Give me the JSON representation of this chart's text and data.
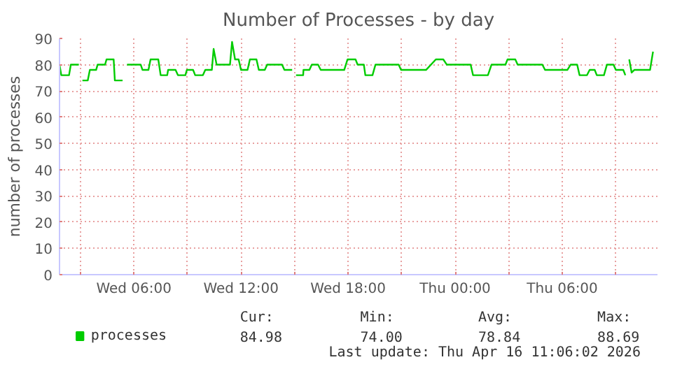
{
  "chart_data": {
    "type": "line",
    "title": "Number of Processes - by day",
    "ylabel": "number of processes",
    "x": [
      "2026-04-15T01:50",
      "2026-04-15T01:56",
      "2026-04-15T02:22",
      "2026-04-15T02:28",
      "2026-04-15T02:55",
      null,
      "2026-04-15T03:07",
      "2026-04-15T03:25",
      "2026-04-15T03:32",
      "2026-04-15T03:53",
      "2026-04-15T03:58",
      "2026-04-15T04:23",
      "2026-04-15T04:28",
      "2026-04-15T04:52",
      "2026-04-15T04:56",
      "2026-04-15T05:22",
      null,
      "2026-04-15T05:37",
      "2026-04-15T06:23",
      "2026-04-15T06:29",
      "2026-04-15T06:49",
      "2026-04-15T06:56",
      "2026-04-15T07:22",
      "2026-04-15T07:30",
      "2026-04-15T07:52",
      "2026-04-15T07:55",
      "2026-04-15T08:20",
      "2026-04-15T08:28",
      "2026-04-15T08:53",
      "2026-04-15T08:58",
      "2026-04-15T09:19",
      "2026-04-15T09:26",
      "2026-04-15T09:52",
      "2026-04-15T10:00",
      "2026-04-15T10:22",
      "2026-04-15T10:28",
      "2026-04-15T10:38",
      "2026-04-15T11:23",
      "2026-04-15T11:30",
      "2026-04-15T11:40",
      "2026-04-15T11:52",
      "2026-04-15T12:00",
      "2026-04-15T12:22",
      "2026-04-15T12:30",
      "2026-04-15T12:52",
      "2026-04-15T13:00",
      "2026-04-15T13:20",
      "2026-04-15T13:28",
      "2026-04-15T14:18",
      "2026-04-15T14:26",
      "2026-04-15T14:52",
      null,
      "2026-04-15T15:05",
      "2026-04-15T15:29",
      "2026-04-15T15:30",
      "2026-04-15T15:50",
      "2026-04-15T15:58",
      "2026-04-15T16:19",
      "2026-04-15T16:28",
      "2026-04-15T17:47",
      "2026-04-15T17:58",
      "2026-04-15T18:25",
      "2026-04-15T18:32",
      "2026-04-15T18:53",
      "2026-04-15T18:58",
      "2026-04-15T19:22",
      "2026-04-15T19:32",
      "2026-04-15T20:50",
      "2026-04-15T20:58",
      "2026-04-15T22:22",
      "2026-04-15T22:55",
      "2026-04-15T23:20",
      "2026-04-15T23:32",
      "2026-04-16T00:52",
      "2026-04-16T01:00",
      "2026-04-16T01:50",
      "2026-04-16T02:02",
      "2026-04-16T02:49",
      "2026-04-16T02:56",
      "2026-04-16T03:22",
      "2026-04-16T03:30",
      "2026-04-16T04:53",
      "2026-04-16T05:02",
      "2026-04-16T06:17",
      "2026-04-16T06:28",
      "2026-04-16T06:50",
      "2026-04-16T06:58",
      "2026-04-16T07:23",
      "2026-04-16T07:32",
      "2026-04-16T07:49",
      "2026-04-16T07:56",
      "2026-04-16T08:20",
      "2026-04-16T08:30",
      "2026-04-16T08:52",
      "2026-04-16T09:00",
      "2026-04-16T09:25",
      "2026-04-16T09:32",
      null,
      "2026-04-16T09:45",
      "2026-04-16T09:53",
      "2026-04-16T10:02",
      "2026-04-16T10:55",
      "2026-04-16T11:05"
    ],
    "series": [
      {
        "name": "processes",
        "color": "#00cc00",
        "values": [
          80,
          76,
          76,
          80,
          80,
          null,
          74,
          74,
          78,
          78,
          80,
          80,
          82,
          82,
          74,
          74,
          null,
          80,
          80,
          78,
          78,
          82,
          82,
          76,
          76,
          78,
          78,
          76,
          76,
          78,
          78,
          76,
          76,
          78,
          78,
          86,
          80,
          80,
          88.69,
          82,
          82,
          78,
          78,
          82,
          82,
          78,
          78,
          80,
          80,
          78,
          78,
          null,
          76,
          76,
          78,
          78,
          80,
          80,
          78,
          78,
          82,
          82,
          80,
          80,
          76,
          76,
          80,
          80,
          78,
          78,
          82,
          82,
          80,
          80,
          76,
          76,
          80,
          80,
          82,
          82,
          80,
          80,
          78,
          78,
          80,
          80,
          76,
          76,
          78,
          78,
          76,
          76,
          80,
          80,
          78,
          78,
          76,
          null,
          82,
          77,
          78,
          78,
          84.98
        ]
      }
    ],
    "xlim": [
      "2026-04-15T01:50",
      "2026-04-16T11:20"
    ],
    "ylim": [
      0,
      90
    ],
    "xticks": [
      {
        "value": "2026-04-15T03:00",
        "label": null
      },
      {
        "value": "2026-04-15T06:00",
        "label": "Wed 06:00"
      },
      {
        "value": "2026-04-15T09:00",
        "label": null
      },
      {
        "value": "2026-04-15T12:00",
        "label": "Wed 12:00"
      },
      {
        "value": "2026-04-15T15:00",
        "label": null
      },
      {
        "value": "2026-04-15T18:00",
        "label": "Wed 18:00"
      },
      {
        "value": "2026-04-15T21:00",
        "label": null
      },
      {
        "value": "2026-04-16T00:00",
        "label": "Thu 00:00"
      },
      {
        "value": "2026-04-16T03:00",
        "label": null
      },
      {
        "value": "2026-04-16T06:00",
        "label": "Thu 06:00"
      },
      {
        "value": "2026-04-16T09:00",
        "label": null
      }
    ],
    "yticks": [
      0,
      10,
      20,
      30,
      40,
      50,
      60,
      70,
      80,
      90
    ],
    "grid": true,
    "legend": "bottom",
    "line_style": "solid",
    "annotations": [
      "Cur:",
      "Min:",
      "Avg:",
      "Max:",
      "84.98",
      "74.00",
      "78.84",
      "88.69",
      "Last update: Thu Apr 16 11:06:02 2026"
    ]
  }
}
